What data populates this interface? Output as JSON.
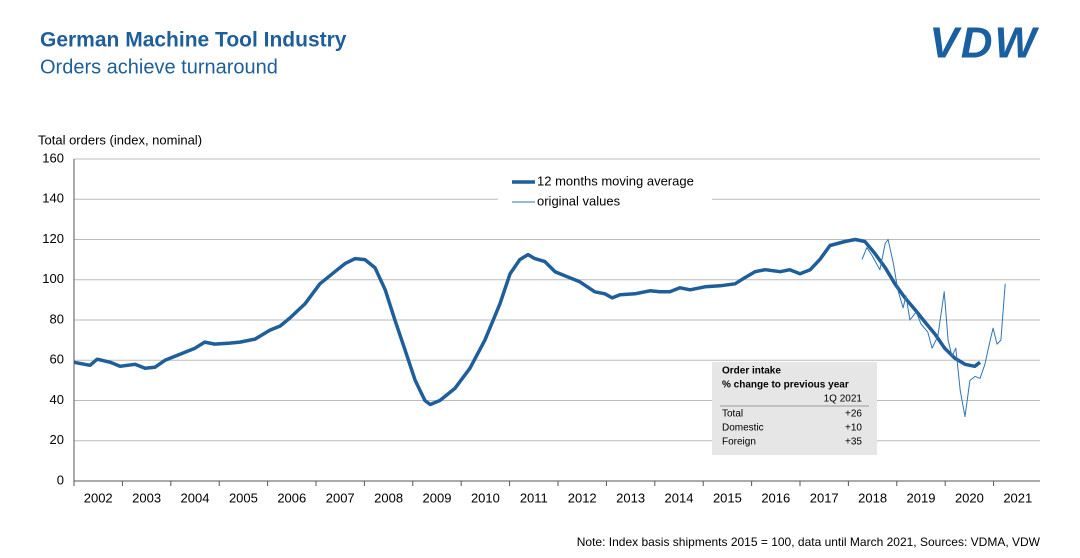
{
  "chart_data": {
    "type": "line",
    "title": "German Machine Tool Industry",
    "subtitle": "Orders achieve turnaround",
    "logo": "VDW",
    "y_label": "Total orders (index, nominal)",
    "note": "Note: Index basis shipments 2015 = 100, data until March 2021, Sources: VDMA, VDW",
    "xlim": [
      2002,
      2022
    ],
    "xticks": [
      {
        "value": 2002.5,
        "label": "2002"
      },
      {
        "value": 2003.5,
        "label": "2003"
      },
      {
        "value": 2004.5,
        "label": "2004"
      },
      {
        "value": 2005.5,
        "label": "2005"
      },
      {
        "value": 2006.5,
        "label": "2006"
      },
      {
        "value": 2007.5,
        "label": "2007"
      },
      {
        "value": 2008.5,
        "label": "2008"
      },
      {
        "value": 2009.5,
        "label": "2009"
      },
      {
        "value": 2010.5,
        "label": "2010"
      },
      {
        "value": 2011.5,
        "label": "2011"
      },
      {
        "value": 2012.5,
        "label": "2012"
      },
      {
        "value": 2013.5,
        "label": "2013"
      },
      {
        "value": 2014.5,
        "label": "2014"
      },
      {
        "value": 2015.5,
        "label": "2015"
      },
      {
        "value": 2016.5,
        "label": "2016"
      },
      {
        "value": 2017.5,
        "label": "2017"
      },
      {
        "value": 2018.5,
        "label": "2018"
      },
      {
        "value": 2019.5,
        "label": "2019"
      },
      {
        "value": 2020.5,
        "label": "2020"
      },
      {
        "value": 2021.5,
        "label": "2021"
      }
    ],
    "ylim": [
      0,
      160
    ],
    "yticks": [
      0,
      20,
      40,
      60,
      80,
      100,
      120,
      140,
      160
    ],
    "grid": true,
    "series": [
      {
        "name": "12 months moving average",
        "color": "#1f5f99",
        "width": 3.5,
        "x": [
          2002.0,
          2002.33,
          2002.48,
          2002.75,
          2002.95,
          2003.26,
          2003.47,
          2003.67,
          2003.88,
          2004.19,
          2004.5,
          2004.7,
          2004.91,
          2005.22,
          2005.43,
          2005.74,
          2006.05,
          2006.26,
          2006.46,
          2006.77,
          2007.08,
          2007.39,
          2007.6,
          2007.81,
          2008.01,
          2008.22,
          2008.43,
          2008.63,
          2008.84,
          2009.05,
          2009.25,
          2009.36,
          2009.56,
          2009.87,
          2010.18,
          2010.49,
          2010.8,
          2011.01,
          2011.21,
          2011.38,
          2011.52,
          2011.73,
          2011.94,
          2012.14,
          2012.45,
          2012.76,
          2012.97,
          2013.12,
          2013.28,
          2013.59,
          2013.9,
          2014.11,
          2014.31,
          2014.52,
          2014.73,
          2015.04,
          2015.35,
          2015.66,
          2015.86,
          2016.07,
          2016.28,
          2016.59,
          2016.79,
          2017.0,
          2017.21,
          2017.41,
          2017.62,
          2017.93,
          2018.14,
          2018.34,
          2018.55,
          2018.76,
          2018.96,
          2019.17,
          2019.38,
          2019.58,
          2019.79,
          2019.99,
          2020.2,
          2020.41,
          2020.61,
          2020.72
        ],
        "values": [
          59,
          57.5,
          60.5,
          59,
          57,
          58,
          56,
          56.5,
          60,
          63,
          66,
          69,
          68,
          68.5,
          69,
          70.5,
          75,
          77,
          81,
          88,
          98,
          104,
          108,
          110.5,
          110,
          106,
          95,
          80,
          65,
          50,
          40,
          38,
          40,
          46,
          56,
          70,
          88,
          103,
          110,
          112.5,
          110.5,
          109,
          104,
          102,
          99,
          94,
          93,
          91,
          92.5,
          93,
          94.5,
          94,
          94,
          96,
          95,
          96.5,
          97,
          98,
          101,
          104,
          105,
          104,
          105,
          103,
          105,
          110,
          117,
          119,
          120,
          119,
          113,
          106,
          98,
          91,
          85,
          79,
          73,
          66,
          61,
          58,
          57,
          59
        ]
      },
      {
        "name": "original values",
        "color": "#2e75b6",
        "width": 1,
        "x": [
          2018.28,
          2018.38,
          2018.49,
          2018.65,
          2018.76,
          2018.82,
          2018.93,
          2019.02,
          2019.13,
          2019.19,
          2019.27,
          2019.4,
          2019.5,
          2019.64,
          2019.73,
          2019.85,
          2019.98,
          2020.06,
          2020.14,
          2020.22,
          2020.31,
          2020.41,
          2020.51,
          2020.62,
          2020.72,
          2020.82,
          2020.93,
          2020.99,
          2021.07,
          2021.15,
          2021.24
        ],
        "values": [
          110,
          116,
          112,
          105,
          118,
          120,
          108,
          95,
          86,
          92,
          80,
          84,
          78,
          74,
          66,
          72,
          94,
          70,
          62,
          66,
          45,
          32,
          50,
          52,
          51,
          58,
          70,
          76,
          68,
          70,
          98
        ]
      }
    ],
    "inset": {
      "title": "Order intake",
      "subtitle": "% change to previous year",
      "period": "1Q 2021",
      "rows": [
        [
          "Total",
          "+26"
        ],
        [
          "Domestic",
          "+10"
        ],
        [
          "Foreign",
          "+35"
        ]
      ]
    }
  }
}
